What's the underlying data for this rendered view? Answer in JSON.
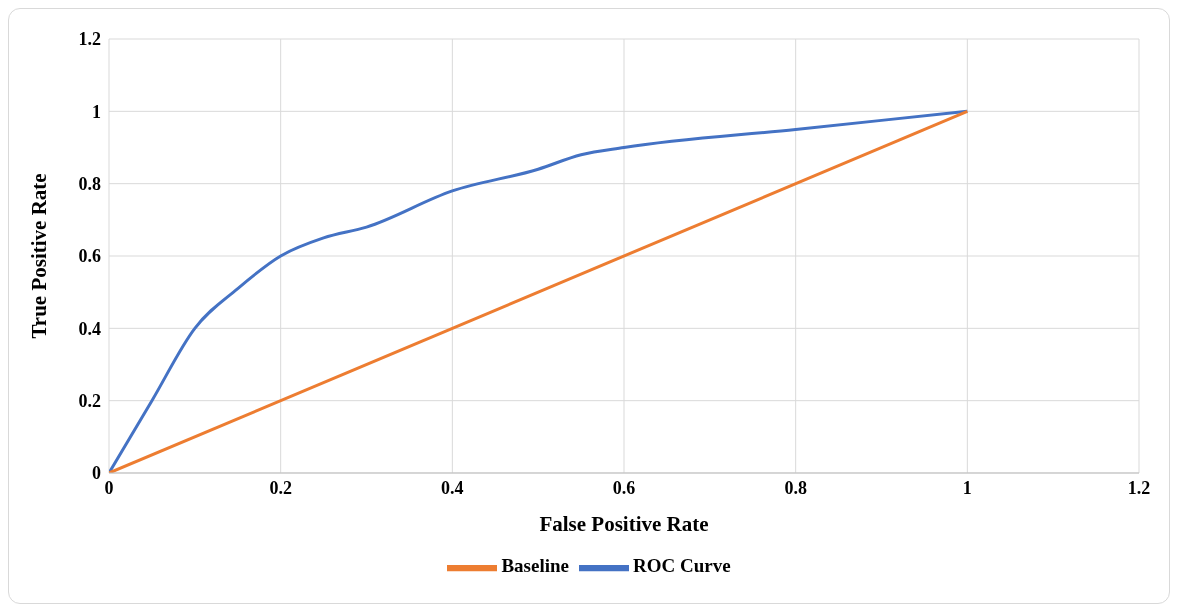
{
  "chart_data": {
    "type": "line",
    "xlabel": "False Positive Rate",
    "ylabel": "True Positive Rate",
    "xlim": [
      0,
      1.2
    ],
    "xticks": [
      0,
      0.2,
      0.4,
      0.6,
      0.8,
      1,
      1.2
    ],
    "ylim": [
      0,
      1.2
    ],
    "yticks": [
      0,
      0.2,
      0.4,
      0.6,
      0.8,
      1,
      1.2
    ],
    "grid": true,
    "legend": "bottom",
    "marker": "none",
    "line_style": "solid",
    "series": [
      {
        "name": "ROC Curve",
        "color": "#4472c4",
        "x": [
          0,
          0.05,
          0.1,
          0.15,
          0.2,
          0.25,
          0.3,
          0.4,
          0.5,
          0.55,
          0.6,
          0.8,
          1
        ],
        "values": [
          0,
          0.2,
          0.4,
          0.51,
          0.6,
          0.65,
          0.68,
          0.78,
          0.84,
          0.88,
          0.9,
          0.95,
          1
        ]
      },
      {
        "name": "Baseline",
        "color": "#ed7d31",
        "x": [
          0,
          1
        ],
        "values": [
          0,
          1
        ]
      }
    ]
  }
}
